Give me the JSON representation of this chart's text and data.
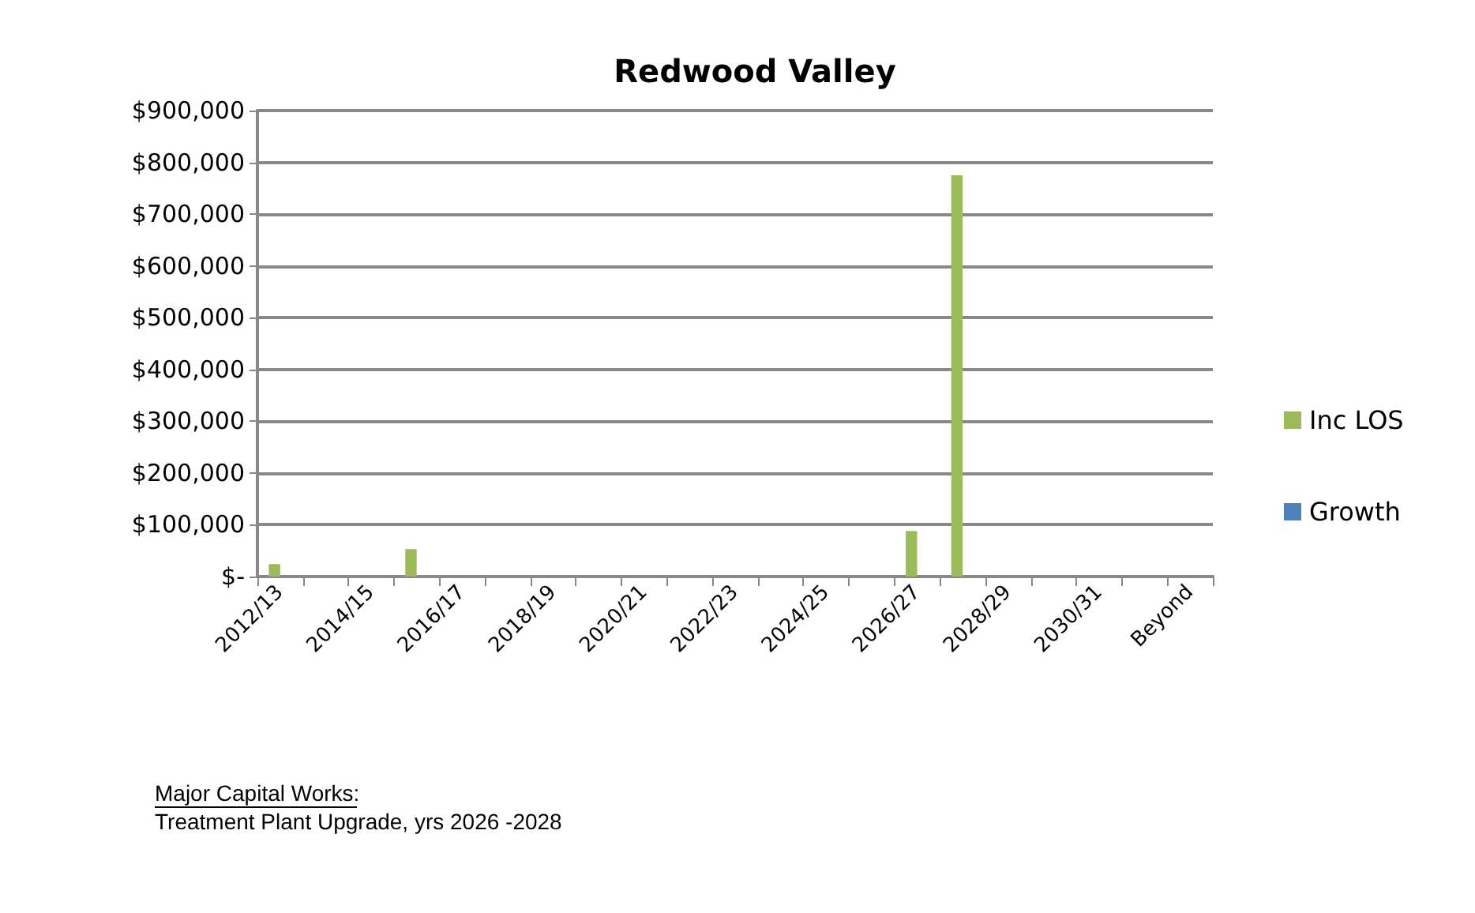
{
  "chart_data": {
    "type": "bar",
    "title": "Redwood Valley",
    "categories": [
      "2012/13",
      null,
      "2014/15",
      null,
      "2016/17",
      null,
      "2018/19",
      null,
      "2020/21",
      null,
      "2022/23",
      null,
      "2024/25",
      null,
      "2026/27",
      null,
      "2028/29",
      null,
      "2030/31",
      null,
      "Beyond"
    ],
    "series": [
      {
        "name": "Inc LOS",
        "color": "#9bbb59",
        "values": [
          24000,
          0,
          0,
          53000,
          0,
          0,
          0,
          0,
          0,
          0,
          0,
          0,
          0,
          0,
          88000,
          775000,
          0,
          0,
          0,
          0,
          0
        ]
      },
      {
        "name": "Growth",
        "color": "#4f81bd",
        "values": [
          0,
          0,
          0,
          0,
          0,
          0,
          0,
          0,
          0,
          0,
          0,
          0,
          0,
          0,
          0,
          0,
          0,
          0,
          0,
          0,
          0
        ]
      }
    ],
    "ylim": [
      0,
      900000
    ],
    "yticks": [
      {
        "value": 0,
        "label": "$-"
      },
      {
        "value": 100000,
        "label": "$100,000"
      },
      {
        "value": 200000,
        "label": "$200,000"
      },
      {
        "value": 300000,
        "label": "$300,000"
      },
      {
        "value": 400000,
        "label": "$400,000"
      },
      {
        "value": 500000,
        "label": "$500,000"
      },
      {
        "value": 600000,
        "label": "$600,000"
      },
      {
        "value": 700000,
        "label": "$700,000"
      },
      {
        "value": 800000,
        "label": "$800,000"
      },
      {
        "value": 900000,
        "label": "$900,000"
      }
    ],
    "grid": "y",
    "legend": "right",
    "annotations": [
      "Major Capital Works:",
      "Treatment Plant Upgrade, yrs 2026 -2028"
    ]
  }
}
